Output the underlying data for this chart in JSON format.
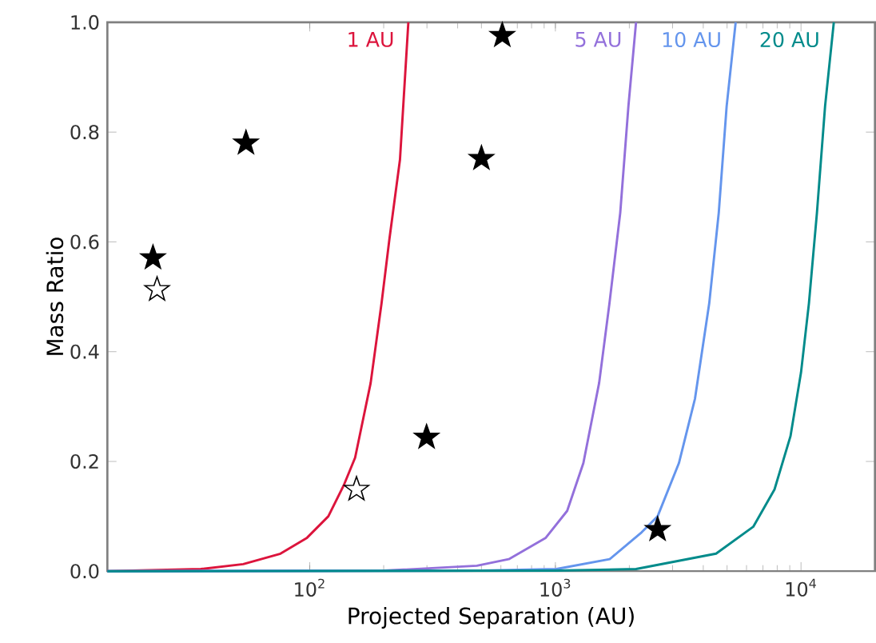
{
  "chart_data": {
    "type": "line",
    "xlabel": "Projected Separation (AU)",
    "ylabel": "Mass Ratio",
    "log": "x",
    "xlim": [
      15,
      20000
    ],
    "ylim": [
      0,
      1
    ],
    "xticks": [
      {
        "value": 100,
        "label": "10$^{2}$"
      },
      {
        "value": 1000,
        "label": "10$^{3}$"
      },
      {
        "value": 10000,
        "label": "10$^{4}$"
      }
    ],
    "yticks": [
      {
        "value": 0,
        "label": "0.0"
      },
      {
        "value": 0.2,
        "label": "0.2"
      },
      {
        "value": 0.4,
        "label": "0.4"
      },
      {
        "value": 0.6,
        "label": "0.6"
      },
      {
        "value": 0.8,
        "label": "0.8"
      },
      {
        "value": 1,
        "label": "1.0"
      }
    ],
    "grid": false,
    "legend": false,
    "marker": "none",
    "line_style": "solid",
    "series": [
      {
        "name": "1 AU",
        "color": "#dc143c",
        "x": [
          15,
          36,
          53.6,
          76,
          97.5,
          119,
          138,
          153,
          177,
          196,
          211,
          233,
          252
        ],
        "values": [
          0,
          0.004,
          0.013,
          0.032,
          0.061,
          0.1,
          0.158,
          0.207,
          0.343,
          0.488,
          0.605,
          0.75,
          1.0
        ]
      },
      {
        "name": "5 AU",
        "color": "#9370db",
        "x": [
          15,
          200,
          479,
          646,
          914,
          1117,
          1300,
          1507,
          1660,
          1837,
          1983,
          2130
        ],
        "values": [
          0,
          0.001,
          0.01,
          0.022,
          0.061,
          0.11,
          0.197,
          0.343,
          0.488,
          0.653,
          0.847,
          1.0
        ]
      },
      {
        "name": "10 AU",
        "color": "#6495ed",
        "x": [
          15,
          500,
          1010,
          1664,
          2245,
          2607,
          3184,
          3700,
          4230,
          4625,
          4980,
          5420
        ],
        "values": [
          0,
          0.001,
          0.004,
          0.022,
          0.071,
          0.1,
          0.197,
          0.314,
          0.488,
          0.653,
          0.847,
          1.0
        ]
      },
      {
        "name": "20 AU",
        "color": "#008b8b",
        "x": [
          15,
          1000,
          2130,
          4510,
          6390,
          7800,
          9060,
          10000,
          10770,
          11610,
          12530,
          13600
        ],
        "values": [
          0,
          0.001,
          0.004,
          0.032,
          0.081,
          0.149,
          0.246,
          0.362,
          0.488,
          0.653,
          0.847,
          1.0
        ]
      },
      {
        "type": "scatter",
        "marker": "star",
        "color": "#000000",
        "x": [
          23.0,
          55,
          608,
          500,
          299,
          2607
        ],
        "values": [
          0.571,
          0.78,
          0.976,
          0.752,
          0.244,
          0.076
        ]
      },
      {
        "type": "scatter",
        "marker": "star",
        "color": "#ffffff",
        "x": [
          23.9,
          155
        ],
        "values": [
          0.513,
          0.149
        ]
      }
    ]
  }
}
